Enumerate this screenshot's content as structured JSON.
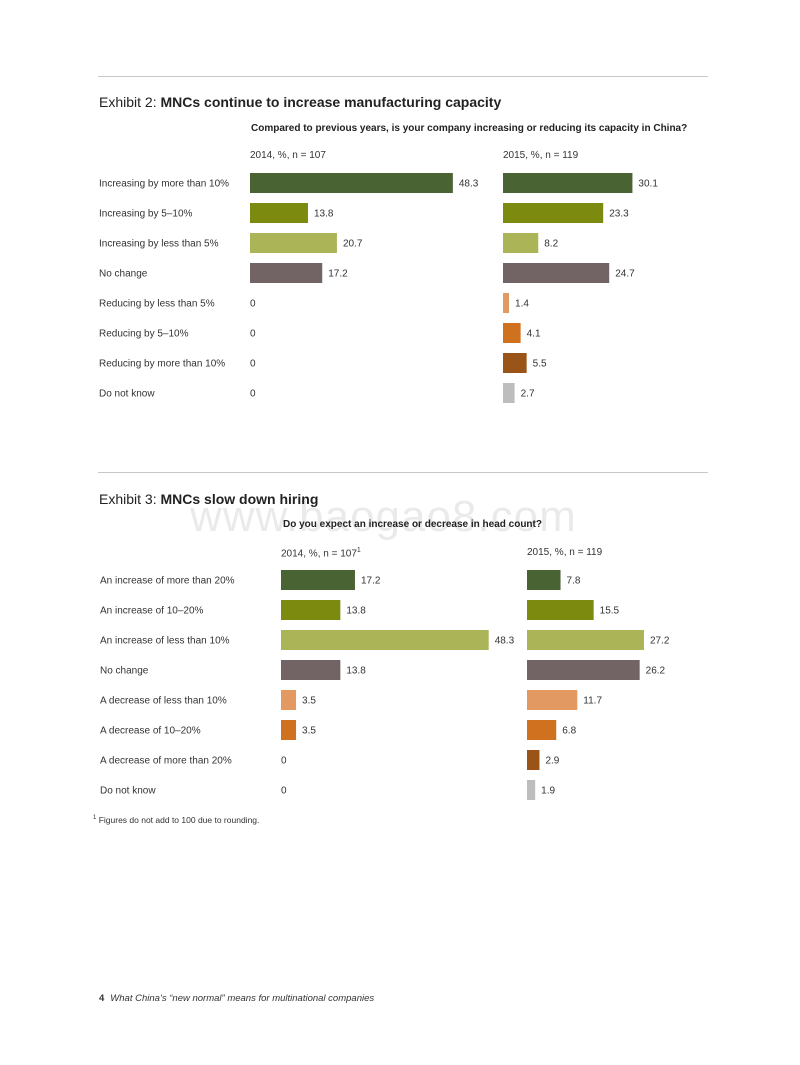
{
  "colors": {
    "dark_green": "#4a6332",
    "olive": "#7d8a10",
    "light_olive": "#acb458",
    "taupe": "#726464",
    "light_orange": "#e39a62",
    "orange": "#d0711f",
    "brown": "#9a5418",
    "grey": "#bdbdbd"
  },
  "watermark": "www.baogao8.com",
  "exhibit2": {
    "prefix": "Exhibit 2: ",
    "title": "MNCs continue to increase manufacturing capacity",
    "question": "Compared to previous years, is your company increasing or reducing its capacity in China?"
  },
  "exhibit3": {
    "prefix": "Exhibit 3: ",
    "title": "MNCs slow down hiring",
    "question": "Do you expect an increase or decrease in head count?"
  },
  "footnote": {
    "mark": "1",
    "text": " Figures do not add to 100 due to rounding."
  },
  "footer": {
    "page_number": "4",
    "text": "What China’s “new normal” means for multinational companies"
  },
  "chart_data": [
    {
      "type": "bar",
      "title": "Exhibit 2: MNCs continue to increase manufacturing capacity",
      "subtitle": "Compared to previous years, is your company increasing or reducing its capacity in China?",
      "categories": [
        "Increasing by more than 10%",
        "Increasing by 5–10%",
        "Increasing by less than 5%",
        "No change",
        "Reducing by less than 5%",
        "Reducing by 5–10%",
        "Reducing by more than 10%",
        "Do not know"
      ],
      "bar_colors": [
        "#4a6332",
        "#7d8a10",
        "#acb458",
        "#726464",
        "#e39a62",
        "#d0711f",
        "#9a5418",
        "#bdbdbd"
      ],
      "series": [
        {
          "name": "2014, %, n = 107",
          "values": [
            48.3,
            13.8,
            20.7,
            17.2,
            0,
            0,
            0,
            0
          ],
          "labels": [
            "48.3",
            "13.8",
            "20.7",
            "17.2",
            "0",
            "0",
            "0",
            "0"
          ]
        },
        {
          "name": "2015, %, n = 119",
          "values": [
            30.1,
            23.3,
            8.2,
            24.7,
            1.4,
            4.1,
            5.5,
            2.7
          ],
          "labels": [
            "30.1",
            "23.3",
            "8.2",
            "24.7",
            "1.4",
            "4.1",
            "5.5",
            "2.7"
          ]
        }
      ]
    },
    {
      "type": "bar",
      "title": "Exhibit 3: MNCs slow down hiring",
      "subtitle": "Do you expect an increase or decrease in head count?",
      "categories": [
        "An increase of more than 20%",
        "An increase of 10–20%",
        "An increase of less than 10%",
        "No change",
        "A decrease of less than 10%",
        "A decrease of 10–20%",
        "A decrease of more than 20%",
        "Do not know"
      ],
      "bar_colors": [
        "#4a6332",
        "#7d8a10",
        "#acb458",
        "#726464",
        "#e39a62",
        "#d0711f",
        "#9a5418",
        "#bdbdbd"
      ],
      "series": [
        {
          "name": "2014, %, n = 107",
          "footnote_mark": "1",
          "values": [
            17.2,
            13.8,
            48.3,
            13.8,
            3.5,
            3.5,
            0,
            0
          ],
          "labels": [
            "17.2",
            "13.8",
            "48.3",
            "13.8",
            "3.5",
            "3.5",
            "0",
            "0"
          ]
        },
        {
          "name": "2015, %, n = 119",
          "values": [
            7.8,
            15.5,
            27.2,
            26.2,
            11.7,
            6.8,
            2.9,
            1.9
          ],
          "labels": [
            "7.8",
            "15.5",
            "27.2",
            "26.2",
            "11.7",
            "6.8",
            "2.9",
            "1.9"
          ]
        }
      ]
    }
  ]
}
